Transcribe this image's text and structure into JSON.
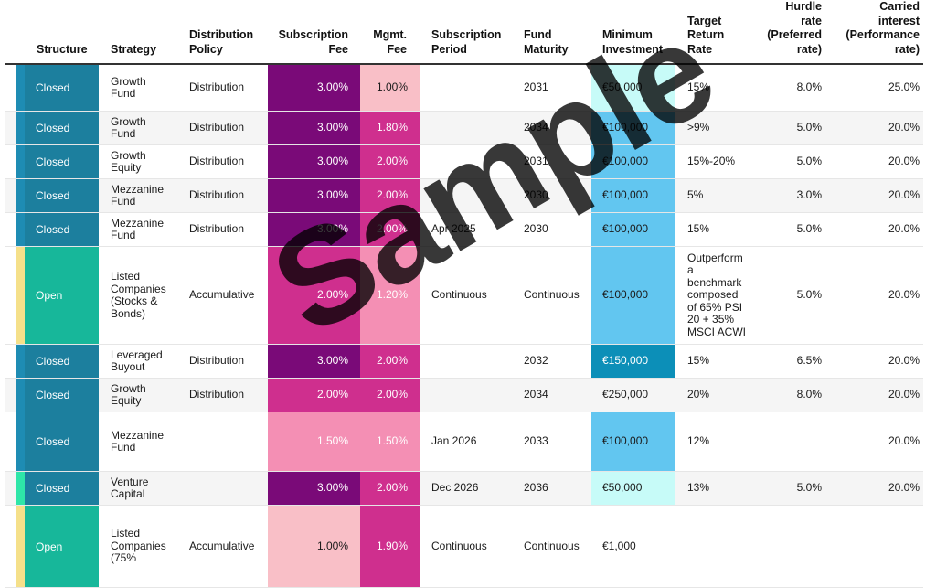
{
  "headers": {
    "structure": "Structure",
    "strategy": "Strategy",
    "distribution": "Distribution\nPolicy",
    "sub_fee": "Subscription\nFee",
    "mgmt_fee": "Mgmt.\nFee",
    "sub_period": "Subscription\nPeriod",
    "maturity": "Fund\nMaturity",
    "min_inv": "Minimum\nInvestment",
    "target": "Target\nReturn\nRate",
    "hurdle": "Hurdle\nrate\n(Preferred\nrate)",
    "carried": "Carried\ninterest\n(Performance\nrate)"
  },
  "watermark": "Sample",
  "colors": {
    "closed_teal": "#1c7f9e",
    "open_green": "#17b79a",
    "strip_closed": "#1e8cb3",
    "strip_open": "#f5e08a",
    "strip_mint": "#2ee6a8",
    "purple_dark": "#7a0a78",
    "magenta": "#cf2f8e",
    "pink_mid": "#f48fb4",
    "pink_light": "#f9bfc7",
    "sky": "#62c6f0",
    "sky_dark": "#0c8fb8",
    "aqua_light": "#c7fbf8"
  },
  "rows": [
    {
      "structure": "Closed",
      "strategy": "Growth\nFund",
      "distribution": "Distribution",
      "sub_fee": "3.00%",
      "mgmt_fee": "1.00%",
      "sub_period": "",
      "maturity": "2031",
      "min_inv": "€50,000",
      "target": "15%",
      "hurdle": "8.0%",
      "carried": "25.0%"
    },
    {
      "structure": "Closed",
      "strategy": "Growth\nFund",
      "distribution": "Distribution",
      "sub_fee": "3.00%",
      "mgmt_fee": "1.80%",
      "sub_period": "",
      "maturity": "2034",
      "min_inv": "€100,000",
      "target": ">9%",
      "hurdle": "5.0%",
      "carried": "20.0%"
    },
    {
      "structure": "Closed",
      "strategy": "Growth\nEquity",
      "distribution": "Distribution",
      "sub_fee": "3.00%",
      "mgmt_fee": "2.00%",
      "sub_period": "",
      "maturity": "2031",
      "min_inv": "€100,000",
      "target": "15%-20%",
      "hurdle": "5.0%",
      "carried": "20.0%"
    },
    {
      "structure": "Closed",
      "strategy": "Mezzanine\nFund",
      "distribution": "Distribution",
      "sub_fee": "3.00%",
      "mgmt_fee": "2.00%",
      "sub_period": "",
      "maturity": "2030",
      "min_inv": "€100,000",
      "target": "5%",
      "hurdle": "3.0%",
      "carried": "20.0%"
    },
    {
      "structure": "Closed",
      "strategy": "Mezzanine\nFund",
      "distribution": "Distribution",
      "sub_fee": "3.00%",
      "mgmt_fee": "2.00%",
      "sub_period": "Apr 2025",
      "maturity": "2030",
      "min_inv": "€100,000",
      "target": "15%",
      "hurdle": "5.0%",
      "carried": "20.0%"
    },
    {
      "structure": "Open",
      "strategy": "Listed\nCompanies\n(Stocks &\nBonds)",
      "distribution": "Accumulative",
      "sub_fee": "2.00%",
      "mgmt_fee": "1.20%",
      "sub_period": "Continuous",
      "maturity": "Continuous",
      "min_inv": "€100,000",
      "target": "Outperform\na\nbenchmark\ncomposed\nof 65% PSI\n20 + 35%\nMSCI ACWI",
      "hurdle": "5.0%",
      "carried": "20.0%"
    },
    {
      "structure": "Closed",
      "strategy": "Leveraged\nBuyout",
      "distribution": "Distribution",
      "sub_fee": "3.00%",
      "mgmt_fee": "2.00%",
      "sub_period": "",
      "maturity": "2032",
      "min_inv": "€150,000",
      "target": "15%",
      "hurdle": "6.5%",
      "carried": "20.0%"
    },
    {
      "structure": "Closed",
      "strategy": "Growth\nEquity",
      "distribution": "Distribution",
      "sub_fee": "2.00%",
      "mgmt_fee": "2.00%",
      "sub_period": "",
      "maturity": "2034",
      "min_inv": "€250,000",
      "target": "20%",
      "hurdle": "8.0%",
      "carried": "20.0%"
    },
    {
      "structure": "Closed",
      "strategy": "Mezzanine\nFund",
      "distribution": "",
      "sub_fee": "1.50%",
      "mgmt_fee": "1.50%",
      "sub_period": "Jan 2026",
      "maturity": "2033",
      "min_inv": "€100,000",
      "target": "12%",
      "hurdle": "",
      "carried": "20.0%"
    },
    {
      "structure": "Closed",
      "strategy": "Venture\nCapital",
      "distribution": "",
      "sub_fee": "3.00%",
      "mgmt_fee": "2.00%",
      "sub_period": "Dec 2026",
      "maturity": "2036",
      "min_inv": "€50,000",
      "target": "13%",
      "hurdle": "5.0%",
      "carried": "20.0%"
    },
    {
      "structure": "Open",
      "strategy": "Listed\nCompanies\n(75%",
      "distribution": "Accumulative",
      "sub_fee": "1.00%",
      "mgmt_fee": "1.90%",
      "sub_period": "Continuous",
      "maturity": "Continuous",
      "min_inv": "€1,000",
      "target": "",
      "hurdle": "",
      "carried": ""
    }
  ]
}
